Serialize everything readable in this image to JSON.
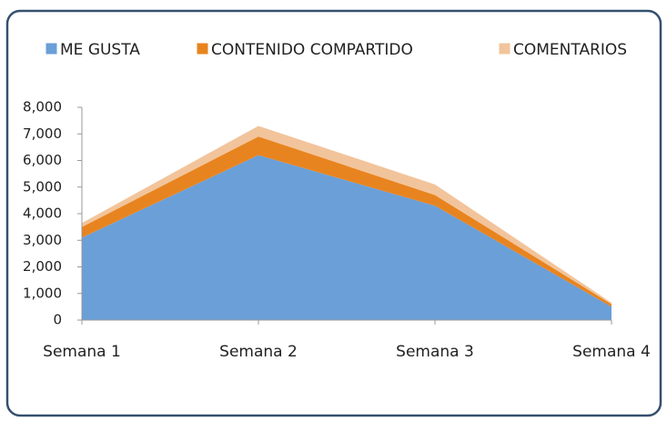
{
  "chart_data": {
    "type": "area",
    "stacked": true,
    "categories": [
      "Semana 1",
      "Semana 2",
      "Semana 3",
      "Semana 4"
    ],
    "series": [
      {
        "name": "ME GUSTA",
        "color": "#6a9fd8",
        "values": [
          3100,
          6200,
          4300,
          500
        ]
      },
      {
        "name": "CONTENIDO COMPARTIDO",
        "color": "#e8841f",
        "values": [
          400,
          700,
          400,
          100
        ]
      },
      {
        "name": "COMENTARIOS",
        "color": "#f2c49b",
        "values": [
          150,
          400,
          400,
          50
        ]
      }
    ],
    "ylim": [
      0,
      8000
    ],
    "yticks": [
      0,
      {
        "value": 1000,
        "label": "1,000"
      },
      {
        "value": 2000,
        "label": "2,000"
      },
      {
        "value": 3000,
        "label": "3,000"
      },
      {
        "value": 4000,
        "label": "4,000"
      },
      {
        "value": 5000,
        "label": "5,000"
      },
      {
        "value": 6000,
        "label": "6,000"
      },
      {
        "value": 7000,
        "label": "7,000"
      },
      {
        "value": 8000,
        "label": "8,000"
      }
    ],
    "legend": "top"
  }
}
